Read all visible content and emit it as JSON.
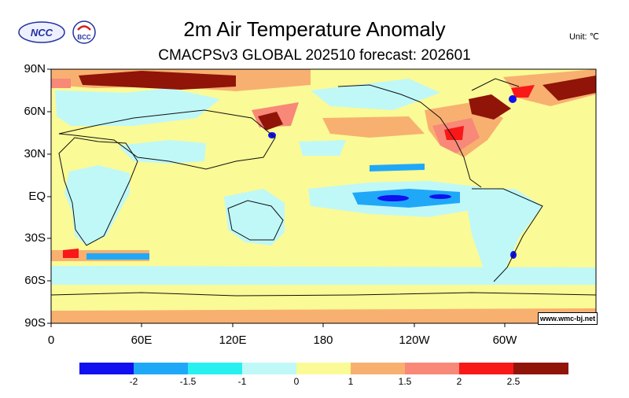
{
  "header": {
    "title": "2m Air Temperature Anomaly",
    "subtitle": "CMACPSv3 GLOBAL 202510 forecast: 202601",
    "unit": "Unit: ℃"
  },
  "logos": {
    "left": "NCC",
    "right": "BCC"
  },
  "map": {
    "lat_labels": [
      "90N",
      "60N",
      "30N",
      "EQ",
      "30S",
      "60S",
      "90S"
    ],
    "lon_labels": [
      "0",
      "60E",
      "120E",
      "180",
      "120W",
      "60W"
    ],
    "credit": "www.wmc-bj.net",
    "base_color": "#fafa96"
  },
  "colorbar": {
    "colors": [
      "#1010f0",
      "#20a8f8",
      "#28f0f0",
      "#c0f8f8",
      "#fafa96",
      "#f8b070",
      "#f88878",
      "#f81818",
      "#901408"
    ],
    "labels": [
      "-2",
      "-1.5",
      "-1",
      "0",
      "1",
      "1.5",
      "2",
      "2.5"
    ]
  }
}
